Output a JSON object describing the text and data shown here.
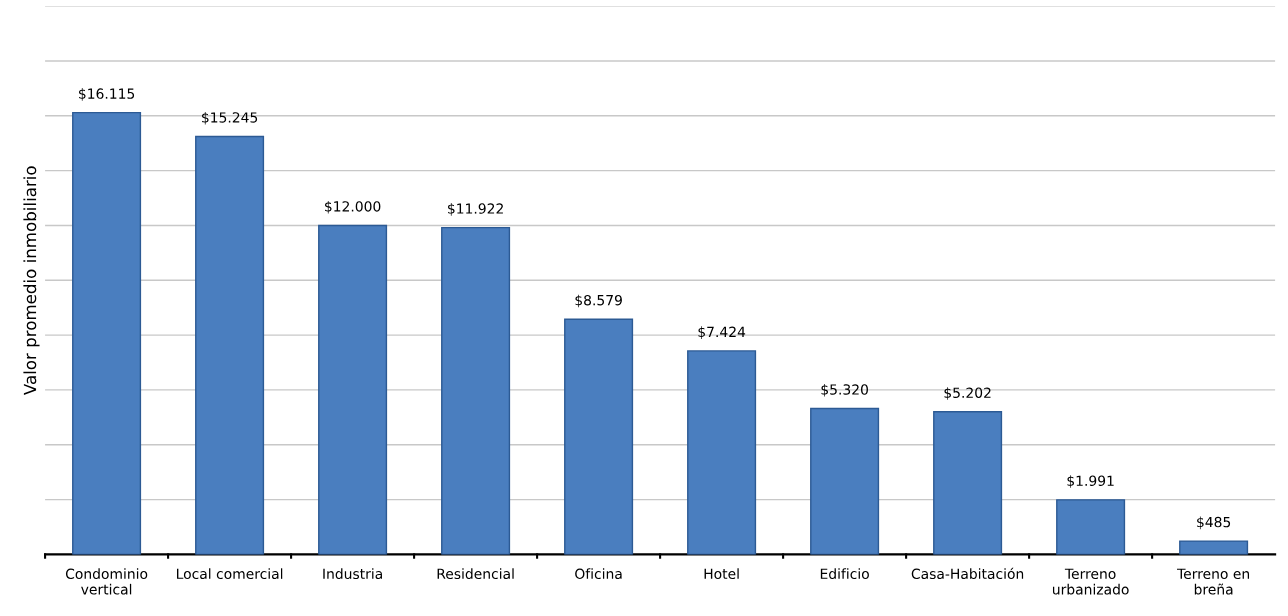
{
  "chart_data": {
    "type": "bar",
    "ylabel": "Valor promedio inmobiliario",
    "categories": [
      "Condominio\nvertical",
      "Local comercial",
      "Industria",
      "Residencial",
      "Oficina",
      "Hotel",
      "Edificio",
      "Casa-Habitación",
      "Terreno\nurbanizado",
      "Terreno en\nbreña"
    ],
    "values": [
      16115,
      15245,
      12000,
      11922,
      8579,
      7424,
      5320,
      5202,
      1991,
      485
    ],
    "value_labels": [
      "$16.115",
      "$15.245",
      "$12.000",
      "$11.922",
      "$8.579",
      "$7.424",
      "$5.320",
      "$5.202",
      "$1.991",
      "$485"
    ],
    "color": "#4a7ebf",
    "ylim": [
      0,
      20000
    ],
    "yticks": [
      {
        "value": 0,
        "label": null
      },
      {
        "value": 2000,
        "label": null
      },
      {
        "value": 4000,
        "label": null
      },
      {
        "value": 6000,
        "label": null
      },
      {
        "value": 8000,
        "label": null
      },
      {
        "value": 10000,
        "label": null
      },
      {
        "value": 12000,
        "label": null
      },
      {
        "value": 14000,
        "label": null
      },
      {
        "value": 16000,
        "label": null
      },
      {
        "value": 18000,
        "label": null
      },
      {
        "value": 20000,
        "label": null
      }
    ],
    "grid": "y",
    "tick_labels": "x"
  }
}
